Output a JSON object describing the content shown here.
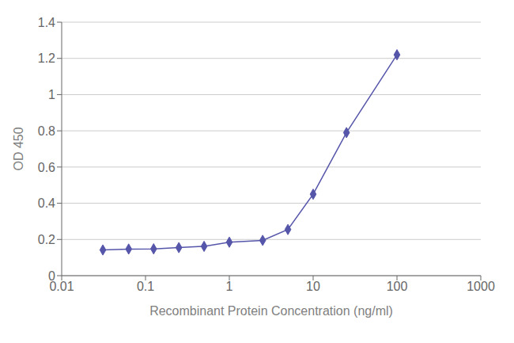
{
  "chart_data": {
    "type": "line",
    "x": [
      0.031,
      0.063,
      0.125,
      0.25,
      0.5,
      1.0,
      2.5,
      5.0,
      10.0,
      25.0,
      100.0
    ],
    "values": [
      0.142,
      0.147,
      0.148,
      0.155,
      0.162,
      0.185,
      0.195,
      0.255,
      0.45,
      0.79,
      1.22
    ],
    "xlabel": "Recombinant Protein Concentration (ng/ml)",
    "ylabel": "OD 450",
    "xlim": [
      0.01,
      1000
    ],
    "xticks": [
      0.01,
      0.1,
      1,
      10,
      100,
      1000
    ],
    "ylim": [
      0,
      1.4
    ],
    "yticks": [
      0,
      0.2,
      0.4,
      0.6,
      0.8,
      1,
      1.2,
      1.4
    ],
    "log": "x",
    "grid": "y",
    "color": "#5555aa",
    "marker": "diamond"
  }
}
